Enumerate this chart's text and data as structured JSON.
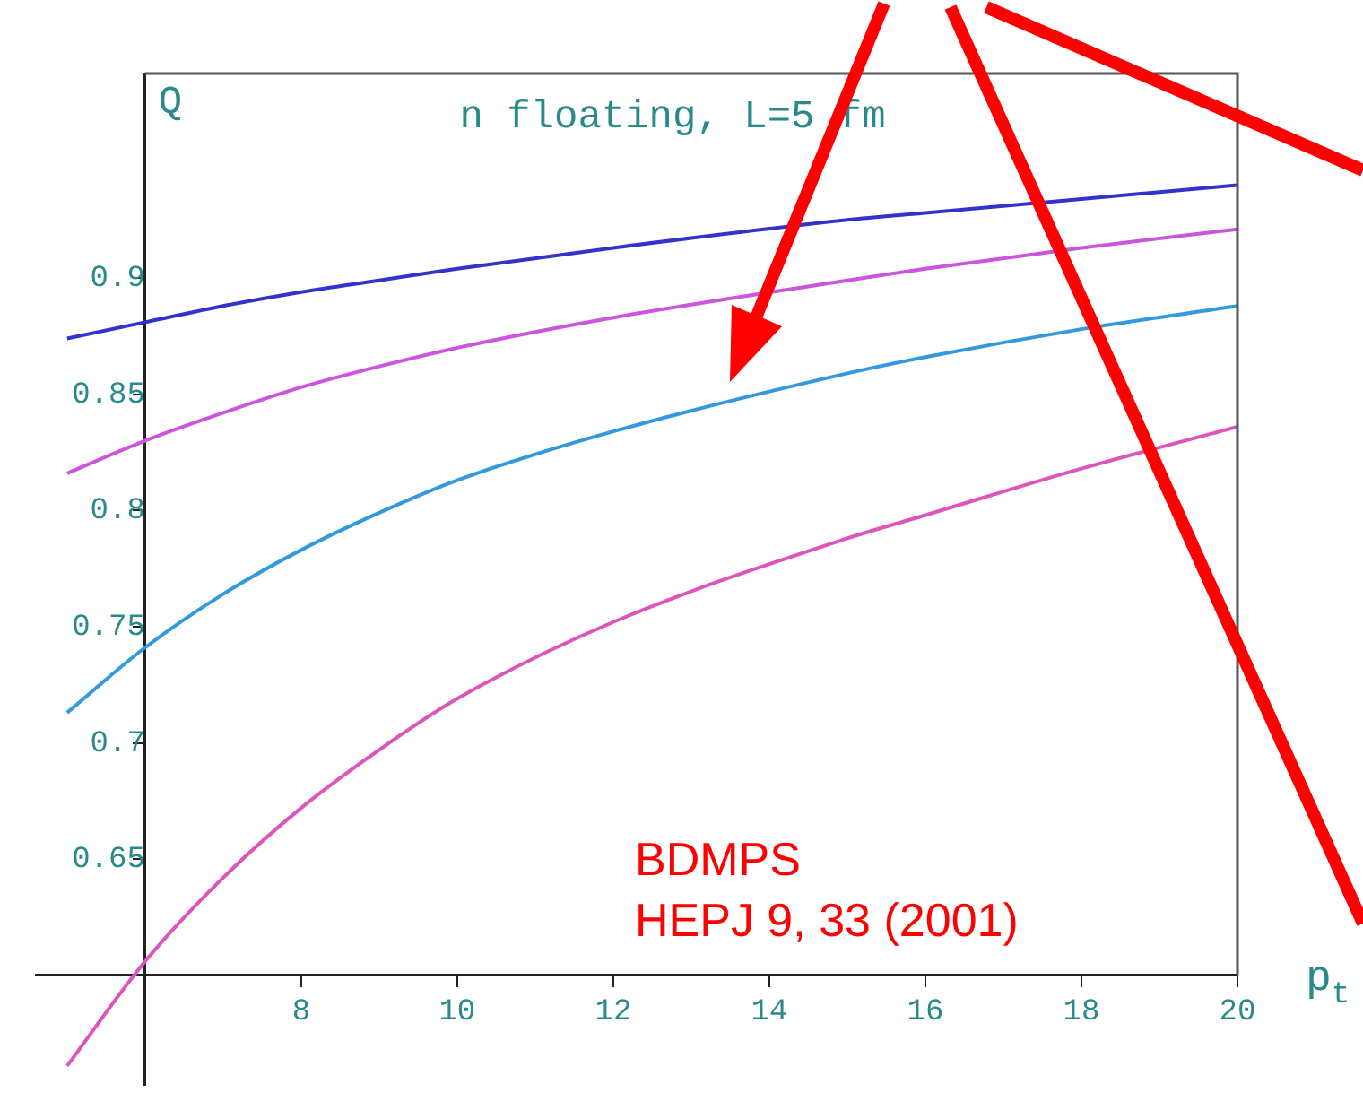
{
  "chart_data": {
    "type": "line",
    "title": "n floating, L=5 fm",
    "xlabel": "p$_{t}$",
    "ylabel": "Q",
    "x": [
      5,
      6,
      7,
      8,
      9,
      10,
      12,
      15,
      16,
      18,
      20
    ],
    "series": [
      {
        "color": "#3333cc",
        "values": [
          0.874,
          0.881,
          0.888,
          0.894,
          0.899,
          0.904,
          0.913,
          0.925,
          0.928,
          0.934,
          0.94
        ]
      },
      {
        "color": "#cc55dd",
        "values": [
          0.816,
          0.83,
          0.842,
          0.853,
          0.862,
          0.87,
          0.883,
          0.899,
          0.904,
          0.913,
          0.921
        ]
      },
      {
        "color": "#3399dd",
        "values": [
          0.713,
          0.741,
          0.764,
          0.783,
          0.799,
          0.813,
          0.834,
          0.859,
          0.866,
          0.878,
          0.888
        ]
      },
      {
        "color": "#dd55bb",
        "values": [
          0.561,
          0.606,
          0.642,
          0.672,
          0.697,
          0.719,
          0.752,
          0.788,
          0.798,
          0.818,
          0.836
        ]
      }
    ],
    "xlim": [
      4.6,
      20
    ],
    "ylim": [
      0.553,
      0.988
    ],
    "xticks": [
      8,
      10,
      12,
      14,
      16,
      18,
      20
    ],
    "yticks": [
      0.65,
      0.7,
      0.75,
      0.8,
      0.85,
      0.9
    ],
    "annotations": [
      "BDMPS",
      "HEPJ 9, 33 (2001)"
    ],
    "marker": "none",
    "line_style": "solid"
  }
}
